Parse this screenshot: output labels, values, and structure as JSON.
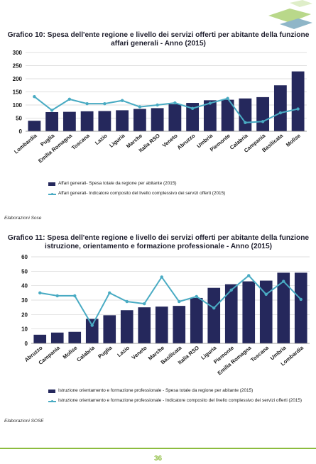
{
  "page_number": "36",
  "chart_data": [
    {
      "type": "bar",
      "title": "Grafico 10: Spesa dell'ente regione e livello dei servizi offerti per abitante della funzione affari generali - Anno (2015)",
      "categories": [
        "Lombardia",
        "Puglia",
        "Emilia Romagna",
        "Toscana",
        "Lazio",
        "Liguria",
        "Marche",
        "Italia RSO",
        "Veneto",
        "Abruzzo",
        "Umbria",
        "Piemonte",
        "Calabria",
        "Campania",
        "Basilicata",
        "Molise"
      ],
      "series": [
        {
          "name": "Affari generali- Spesa totale da regione per abitante (2015)",
          "type": "bar",
          "values": [
            40,
            73,
            74,
            76,
            77,
            80,
            85,
            88,
            103,
            108,
            118,
            120,
            125,
            130,
            175,
            228
          ]
        },
        {
          "name": "Affari generali- Indicatore composito del livello complessivo dei servizi offerti (2015)",
          "type": "line",
          "values": [
            132,
            80,
            122,
            105,
            105,
            117,
            93,
            100,
            108,
            87,
            107,
            125,
            33,
            37,
            70,
            85
          ]
        }
      ],
      "ylim": [
        0,
        300
      ],
      "yticks": [
        0,
        50,
        100,
        150,
        200,
        250,
        300
      ],
      "grid": true,
      "legend_position": "bottom",
      "source": "Elaborazioni Sose"
    },
    {
      "type": "bar",
      "title": "Grafico 11: Spesa dell'ente regione e livello dei servizi offerti per abitante della funzione istruzione, orientamento e formazione professionale - Anno (2015)",
      "categories": [
        "Abruzzo",
        "Campania",
        "Molise",
        "Calabria",
        "Puglia",
        "Lazio",
        "Veneto",
        "Marche",
        "Basilicata",
        "Italia RSO",
        "Liguria",
        "Piemonte",
        "Emilia Romagna",
        "Toscana",
        "Umbria",
        "Lombardia"
      ],
      "series": [
        {
          "name": "Istruzione orientamento e formazione professionale - Spesa totale da regione per abitante (2015)",
          "type": "bar",
          "values": [
            6,
            7.5,
            8,
            17,
            19.5,
            23,
            25,
            25.5,
            26,
            31.5,
            38.5,
            41,
            43,
            43.5,
            49,
            49
          ]
        },
        {
          "name": "Istruzione orientamento e formazione professionale - Indicatore composito del livello complessivo dei servizi offerti (2015)",
          "type": "line",
          "values": [
            35,
            33,
            33,
            12.5,
            35,
            29,
            27.5,
            46,
            29,
            32.5,
            24.5,
            37,
            47,
            34,
            43,
            30.5
          ]
        }
      ],
      "ylim": [
        0,
        60
      ],
      "yticks": [
        0,
        10,
        20,
        30,
        40,
        50,
        60
      ],
      "grid": true,
      "legend_position": "bottom",
      "source": "Elaborazioni SOSE"
    }
  ],
  "colors": {
    "bar": "#25285c",
    "line": "#49abc3",
    "grid": "#d4d4d4",
    "footer": "#8cbc3e"
  }
}
